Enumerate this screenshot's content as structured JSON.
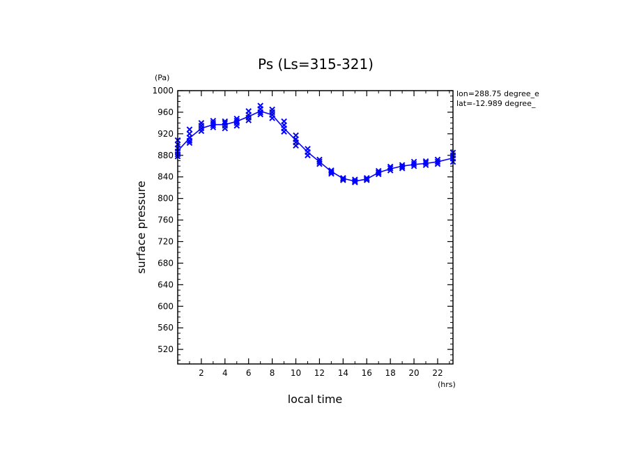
{
  "chart_data": {
    "type": "line",
    "title": "Ps (Ls=315-321)",
    "xlabel": "local time",
    "ylabel": "surface pressure",
    "xunit": "(hrs)",
    "yunit": "(Pa)",
    "xlim": [
      0,
      23.3
    ],
    "ylim": [
      493,
      1000
    ],
    "xticks": [
      2,
      4,
      6,
      8,
      10,
      12,
      14,
      16,
      18,
      20,
      22
    ],
    "yticks": [
      520,
      560,
      600,
      640,
      680,
      720,
      760,
      800,
      840,
      880,
      920,
      960,
      1000
    ],
    "annotations": [
      "lon=288.75 degree_e",
      "lat=-12.989 degree_"
    ],
    "color": "#0000ff",
    "line": {
      "x": [
        0,
        1,
        2,
        3,
        4,
        5,
        6,
        7,
        8,
        9,
        10,
        11,
        12,
        13,
        14,
        15,
        16,
        17,
        18,
        19,
        20,
        21,
        22,
        23.3
      ],
      "y": [
        888,
        912,
        930,
        937,
        937,
        943,
        952,
        962,
        955,
        930,
        908,
        886,
        868,
        850,
        837,
        832,
        836,
        848,
        855,
        860,
        863,
        865,
        868,
        875
      ]
    },
    "scatter": {
      "x": [
        0,
        0,
        0,
        0,
        0,
        0,
        1,
        1,
        1,
        1,
        1,
        2,
        2,
        2,
        2,
        3,
        3,
        3,
        3,
        4,
        4,
        4,
        4,
        5,
        5,
        5,
        5,
        6,
        6,
        6,
        6,
        7,
        7,
        7,
        7,
        8,
        8,
        8,
        8,
        9,
        9,
        9,
        9,
        10,
        10,
        10,
        10,
        11,
        11,
        11,
        12,
        12,
        12,
        13,
        13,
        13,
        14,
        14,
        14,
        15,
        15,
        15,
        16,
        16,
        16,
        17,
        17,
        17,
        18,
        18,
        18,
        19,
        19,
        19,
        20,
        20,
        20,
        21,
        21,
        21,
        22,
        22,
        22,
        23.3,
        23.3,
        23.3,
        23.3
      ],
      "y": [
        908,
        900,
        893,
        887,
        882,
        878,
        928,
        920,
        913,
        907,
        903,
        940,
        935,
        930,
        925,
        944,
        940,
        936,
        932,
        943,
        940,
        935,
        930,
        948,
        944,
        940,
        935,
        962,
        955,
        950,
        945,
        972,
        966,
        960,
        956,
        965,
        960,
        955,
        949,
        943,
        936,
        930,
        924,
        917,
        910,
        904,
        898,
        892,
        886,
        880,
        872,
        868,
        864,
        852,
        849,
        846,
        838,
        836,
        834,
        835,
        832,
        830,
        838,
        836,
        834,
        851,
        848,
        845,
        859,
        856,
        852,
        862,
        859,
        856,
        868,
        864,
        860,
        869,
        866,
        862,
        872,
        868,
        864,
        885,
        880,
        874,
        868
      ]
    }
  }
}
